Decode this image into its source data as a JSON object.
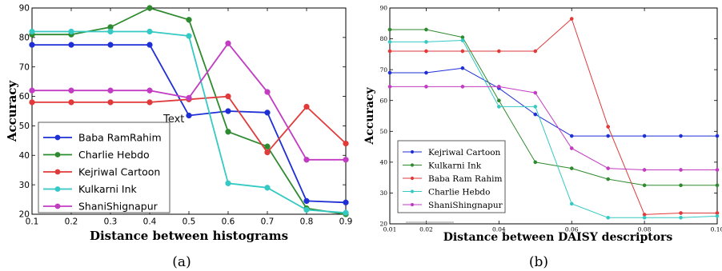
{
  "figure": {
    "caption_a": "(a)",
    "caption_b": "(b)"
  },
  "chart_data": [
    {
      "type": "line",
      "panel": "a",
      "xlabel": "Distance between histograms",
      "ylabel": "Accuracy",
      "annotation": "Text",
      "annotation_at": [
        0.49,
        52.5
      ],
      "xlim": [
        0.1,
        0.9
      ],
      "ylim": [
        20,
        90
      ],
      "xticks": [
        0.1,
        0.2,
        0.3,
        0.4,
        0.5,
        0.6,
        0.7,
        0.8,
        0.9
      ],
      "xtick_labels": [
        "0.1",
        "0.2",
        "0.3",
        "0.4",
        "0.5",
        "0.6",
        "0.7",
        "0.8",
        "0.9"
      ],
      "yticks": [
        20,
        30,
        40,
        50,
        60,
        70,
        80,
        90
      ],
      "ytick_labels": [
        "20",
        "30",
        "40",
        "50",
        "60",
        "70",
        "80",
        "90"
      ],
      "legend_position": "lower-left",
      "x": [
        0.1,
        0.2,
        0.3,
        0.4,
        0.5,
        0.6,
        0.7,
        0.8,
        0.9
      ],
      "series": [
        {
          "name": "Baba RamRahim",
          "color": "#1f2fd6",
          "values": [
            77.5,
            77.5,
            77.5,
            77.5,
            53.5,
            55,
            54.5,
            24.5,
            24
          ]
        },
        {
          "name": "Charlie Hebdo",
          "color": "#2e8a2e",
          "values": [
            81,
            81,
            83.5,
            90,
            86,
            48,
            43,
            22,
            20
          ]
        },
        {
          "name": "Kejriwal Cartoon",
          "color": "#e03a3a",
          "values": [
            58,
            58,
            58,
            58,
            59,
            60,
            41,
            56.5,
            44
          ]
        },
        {
          "name": "Kulkarni Ink",
          "color": "#35c9c4",
          "values": [
            82,
            82,
            82,
            82,
            80.5,
            30.5,
            29,
            21.5,
            20.5
          ]
        },
        {
          "name": "ShaniShignapur",
          "color": "#c23cc2",
          "values": [
            62,
            62,
            62,
            62,
            59.5,
            78,
            61.5,
            38.5,
            38.5
          ]
        }
      ]
    },
    {
      "type": "line",
      "panel": "b",
      "xlabel": "Distance between DAISY descriptors",
      "ylabel": "Accuracy",
      "xlim": [
        0.01,
        0.1
      ],
      "ylim": [
        20,
        90
      ],
      "xticks": [
        0.01,
        0.02,
        0.04,
        0.06,
        0.08,
        0.1
      ],
      "xtick_labels": [
        "0.01",
        "0.02",
        "0.04",
        "0.06",
        "0.08",
        "0.10"
      ],
      "yticks": [
        20,
        30,
        40,
        50,
        60,
        70,
        80,
        90
      ],
      "ytick_labels": [
        "20",
        "30",
        "40",
        "50",
        "60",
        "70",
        "80",
        "90"
      ],
      "legend_position": "lower-left",
      "x": [
        0.01,
        0.02,
        0.03,
        0.04,
        0.05,
        0.06,
        0.07,
        0.08,
        0.09,
        0.1
      ],
      "series": [
        {
          "name": "Kejriwal Cartoon",
          "color": "#1f2fd6",
          "values": [
            69,
            69,
            70.5,
            64,
            55.5,
            48.5,
            48.5,
            48.5,
            48.5,
            48.5
          ]
        },
        {
          "name": "Kulkarni Ink",
          "color": "#2e8a2e",
          "values": [
            83,
            83,
            80.5,
            60,
            40,
            38,
            34.5,
            32.5,
            32.5,
            32.5
          ]
        },
        {
          "name": "Baba Ram Rahim",
          "color": "#e03a3a",
          "values": [
            76,
            76,
            76,
            76,
            76,
            86.5,
            51.5,
            23,
            23.5,
            23.5
          ]
        },
        {
          "name": "Charlie Hebdo",
          "color": "#35c9c4",
          "values": [
            79,
            79,
            79.5,
            58,
            58,
            26.5,
            22,
            22,
            22,
            22.5
          ]
        },
        {
          "name": "ShaniShingnapur",
          "color": "#c23cc2",
          "values": [
            64.5,
            64.5,
            64.5,
            64.5,
            62.5,
            44.5,
            38,
            37.5,
            37.5,
            37.5
          ]
        }
      ]
    }
  ]
}
